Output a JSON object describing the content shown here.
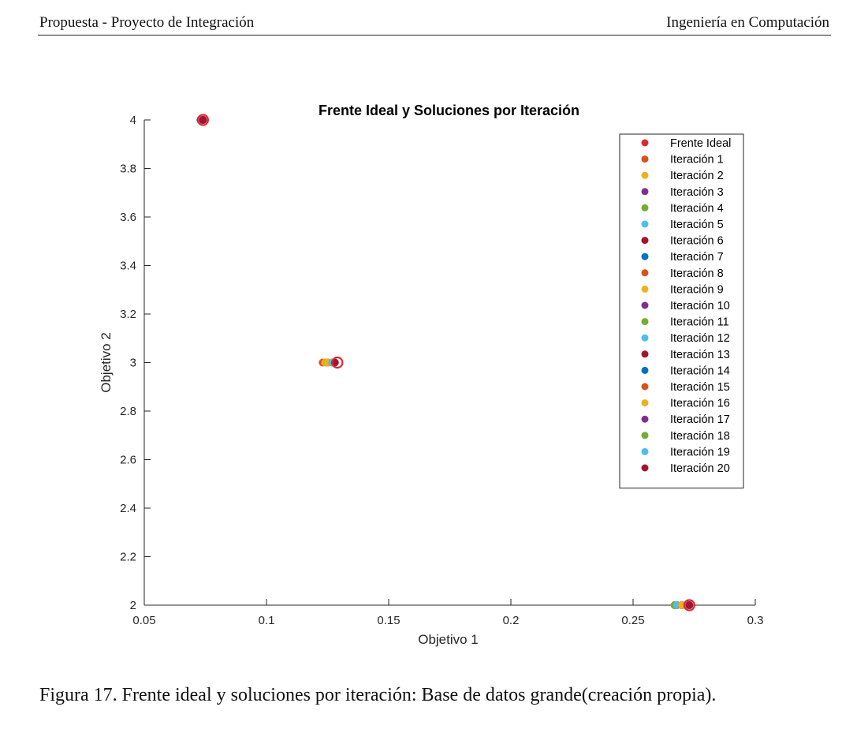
{
  "header": {
    "left": "Propuesta - Proyecto de Integración",
    "right": "Ingeniería en Computación"
  },
  "caption": "Figura 17.  Frente ideal y soluciones por iteración: Base de datos grande(creación propia).",
  "colors": {
    "ideal_ring": "#e0262e",
    "palette": [
      "#e0262e",
      "#d95319",
      "#edb120",
      "#7e2f8e",
      "#77ac30",
      "#4dbeee",
      "#a2142f",
      "#0072bd"
    ]
  },
  "chart_data": {
    "type": "scatter",
    "title": "Frente Ideal y Soluciones por Iteración",
    "xlabel": "Objetivo 1",
    "ylabel": "Objetivo 2",
    "xlim": [
      0.05,
      0.3
    ],
    "ylim": [
      2,
      4
    ],
    "xticks": [
      0.05,
      0.1,
      0.15,
      0.2,
      0.25,
      0.3
    ],
    "xtick_labels": [
      "0.05",
      "0.1",
      "0.15",
      "0.2",
      "0.25",
      "0.3"
    ],
    "yticks": [
      2,
      2.2,
      2.4,
      2.6,
      2.8,
      3,
      3.2,
      3.4,
      3.6,
      3.8,
      4
    ],
    "ytick_labels": [
      "2",
      "2.2",
      "2.4",
      "2.6",
      "2.8",
      "3",
      "3.2",
      "3.4",
      "3.6",
      "3.8",
      "4"
    ],
    "grid": false,
    "legend_position": "top-right",
    "series": [
      {
        "name": "Frente Ideal",
        "color": "#e0262e",
        "marker": "ring",
        "points": [
          [
            0.074,
            4
          ],
          [
            0.129,
            3
          ],
          [
            0.273,
            2
          ]
        ]
      },
      {
        "name": "Iteración 1",
        "color": "#d95319",
        "points": [
          [
            0.074,
            4
          ],
          [
            0.123,
            3
          ],
          [
            0.267,
            2
          ]
        ]
      },
      {
        "name": "Iteración 2",
        "color": "#edb120",
        "points": [
          [
            0.074,
            4
          ],
          [
            0.124,
            3
          ],
          [
            0.267,
            2
          ]
        ]
      },
      {
        "name": "Iteración 3",
        "color": "#7e2f8e",
        "points": [
          [
            0.074,
            4
          ],
          [
            0.125,
            3
          ],
          [
            0.268,
            2
          ]
        ]
      },
      {
        "name": "Iteración 4",
        "color": "#77ac30",
        "points": [
          [
            0.074,
            4
          ],
          [
            0.125,
            3
          ],
          [
            0.267,
            2
          ]
        ]
      },
      {
        "name": "Iteración 5",
        "color": "#4dbeee",
        "points": [
          [
            0.074,
            4
          ],
          [
            0.125,
            3
          ],
          [
            0.268,
            2
          ]
        ]
      },
      {
        "name": "Iteración 6",
        "color": "#a2142f",
        "points": [
          [
            0.074,
            4
          ],
          [
            0.127,
            3
          ],
          [
            0.27,
            2
          ]
        ]
      },
      {
        "name": "Iteración 7",
        "color": "#0072bd",
        "points": [
          [
            0.073,
            4
          ],
          [
            0.125,
            3
          ],
          [
            0.27,
            2
          ]
        ]
      },
      {
        "name": "Iteración 8",
        "color": "#d95319",
        "points": [
          [
            0.073,
            4
          ],
          [
            0.125,
            3
          ],
          [
            0.27,
            2
          ]
        ]
      },
      {
        "name": "Iteración 9",
        "color": "#edb120",
        "points": [
          [
            0.073,
            4
          ],
          [
            0.125,
            3
          ],
          [
            0.27,
            2
          ]
        ]
      },
      {
        "name": "Iteración 10",
        "color": "#7e2f8e",
        "points": [
          [
            0.073,
            4
          ],
          [
            0.125,
            3
          ],
          [
            0.272,
            2
          ]
        ]
      },
      {
        "name": "Iteración 11",
        "color": "#77ac30",
        "points": [
          [
            0.073,
            4
          ],
          [
            0.125,
            3
          ],
          [
            0.272,
            2
          ]
        ]
      },
      {
        "name": "Iteración 12",
        "color": "#4dbeee",
        "points": [
          [
            0.073,
            4
          ],
          [
            0.125,
            3
          ],
          [
            0.272,
            2
          ]
        ]
      },
      {
        "name": "Iteración 13",
        "color": "#a2142f",
        "points": [
          [
            0.073,
            4
          ],
          [
            0.127,
            3
          ],
          [
            0.27,
            2
          ]
        ]
      },
      {
        "name": "Iteración 14",
        "color": "#0072bd",
        "points": [
          [
            0.073,
            4
          ],
          [
            0.125,
            3
          ],
          [
            0.27,
            2
          ]
        ]
      },
      {
        "name": "Iteración 15",
        "color": "#d95319",
        "points": [
          [
            0.073,
            4
          ],
          [
            0.125,
            3
          ],
          [
            0.27,
            2
          ]
        ]
      },
      {
        "name": "Iteración 16",
        "color": "#edb120",
        "points": [
          [
            0.073,
            4
          ],
          [
            0.125,
            3
          ],
          [
            0.27,
            2
          ]
        ]
      },
      {
        "name": "Iteración 17",
        "color": "#7e2f8e",
        "points": [
          [
            0.074,
            4
          ],
          [
            0.127,
            3
          ],
          [
            0.273,
            2
          ]
        ]
      },
      {
        "name": "Iteración 18",
        "color": "#77ac30",
        "points": [
          [
            0.073,
            4
          ],
          [
            0.127,
            3
          ],
          [
            0.273,
            2
          ]
        ]
      },
      {
        "name": "Iteración 19",
        "color": "#4dbeee",
        "points": [
          [
            0.073,
            4
          ],
          [
            0.127,
            3
          ],
          [
            0.273,
            2
          ]
        ]
      },
      {
        "name": "Iteración 20",
        "color": "#a2142f",
        "points": [
          [
            0.074,
            4
          ],
          [
            0.128,
            3
          ],
          [
            0.273,
            2
          ]
        ]
      }
    ]
  }
}
